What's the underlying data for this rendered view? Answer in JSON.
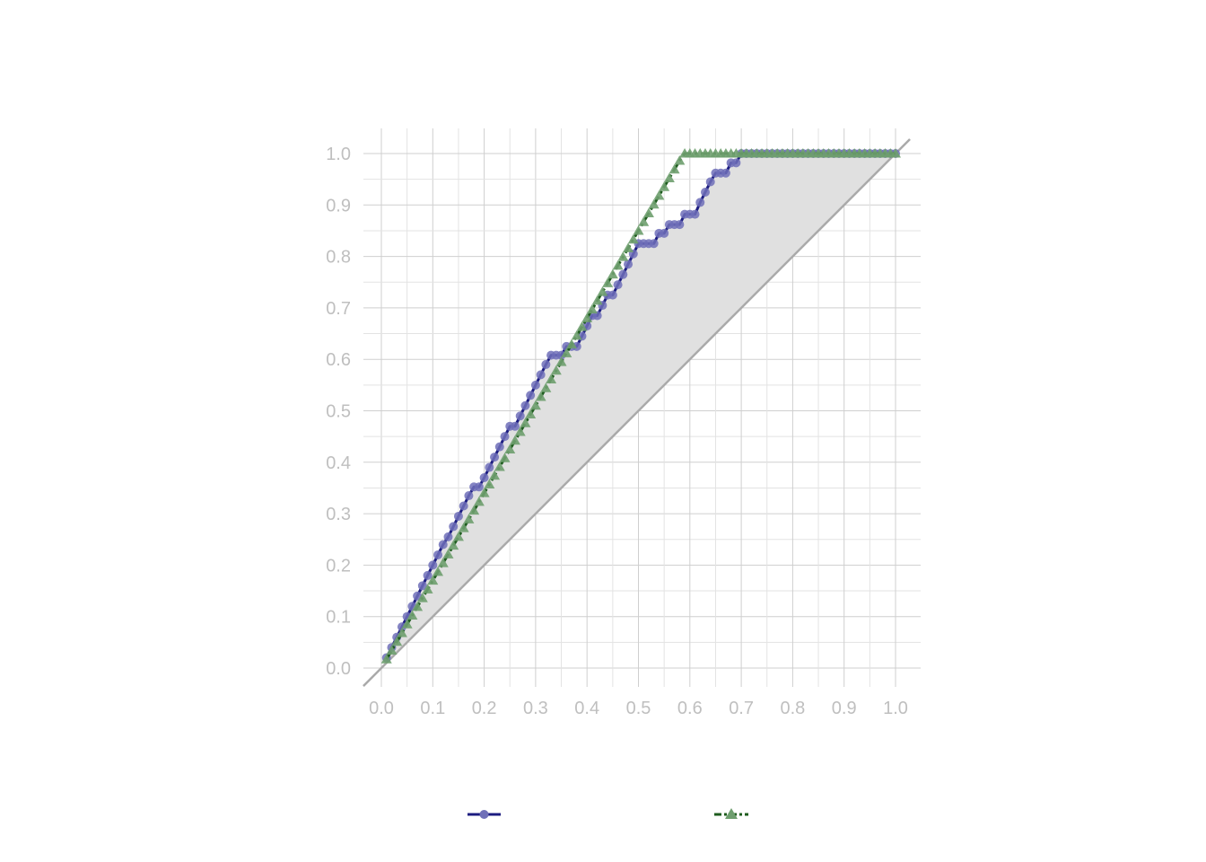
{
  "chart_data": {
    "type": "line",
    "title": "",
    "xlabel": "",
    "ylabel": "",
    "xlim": [
      0.0,
      1.0
    ],
    "ylim": [
      0.0,
      1.0
    ],
    "x_ticks": [
      "0.0",
      "0.1",
      "0.2",
      "0.3",
      "0.4",
      "0.5",
      "0.6",
      "0.7",
      "0.8",
      "0.9",
      "1.0"
    ],
    "y_ticks": [
      "0.0",
      "0.1",
      "0.2",
      "0.3",
      "0.4",
      "0.5",
      "0.6",
      "0.7",
      "0.8",
      "0.9",
      "1.0"
    ],
    "grid": true,
    "legend_position": "bottom",
    "reference_line": {
      "from": [
        0.0,
        0.0
      ],
      "to": [
        1.0,
        1.0
      ],
      "color": "#aaaaaa"
    },
    "shaded_area": {
      "between": [
        "Series A",
        "reference_line"
      ],
      "color": "#e0e0e0"
    },
    "series": [
      {
        "marker": "circle",
        "line_style": "solid",
        "color": "#1c1c80",
        "marker_color": "#6f6fb8",
        "x": [
          0.01,
          0.02,
          0.03,
          0.04,
          0.05,
          0.06,
          0.07,
          0.08,
          0.09,
          0.1,
          0.11,
          0.12,
          0.13,
          0.14,
          0.15,
          0.16,
          0.17,
          0.18,
          0.19,
          0.2,
          0.21,
          0.22,
          0.23,
          0.24,
          0.25,
          0.26,
          0.27,
          0.28,
          0.29,
          0.3,
          0.31,
          0.32,
          0.33,
          0.34,
          0.35,
          0.36,
          0.37,
          0.38,
          0.39,
          0.4,
          0.41,
          0.42,
          0.43,
          0.44,
          0.45,
          0.46,
          0.47,
          0.48,
          0.49,
          0.5,
          0.51,
          0.52,
          0.53,
          0.54,
          0.55,
          0.56,
          0.57,
          0.58,
          0.59,
          0.6,
          0.61,
          0.62,
          0.63,
          0.64,
          0.65,
          0.66,
          0.67,
          0.68,
          0.69,
          0.7,
          0.71,
          0.72,
          0.73,
          0.74,
          0.75,
          0.76,
          0.77,
          0.78,
          0.79,
          0.8,
          0.81,
          0.82,
          0.83,
          0.84,
          0.85,
          0.86,
          0.87,
          0.88,
          0.89,
          0.9,
          0.91,
          0.92,
          0.93,
          0.94,
          0.95,
          0.96,
          0.97,
          0.98,
          0.99,
          1.0
        ],
        "y": [
          0.02,
          0.04,
          0.06,
          0.08,
          0.1,
          0.12,
          0.14,
          0.16,
          0.18,
          0.2,
          0.22,
          0.24,
          0.255,
          0.275,
          0.295,
          0.315,
          0.335,
          0.352,
          0.352,
          0.37,
          0.39,
          0.41,
          0.43,
          0.45,
          0.47,
          0.47,
          0.49,
          0.51,
          0.53,
          0.55,
          0.57,
          0.59,
          0.608,
          0.608,
          0.608,
          0.625,
          0.625,
          0.625,
          0.645,
          0.665,
          0.685,
          0.685,
          0.705,
          0.725,
          0.725,
          0.745,
          0.765,
          0.785,
          0.805,
          0.825,
          0.825,
          0.825,
          0.825,
          0.845,
          0.845,
          0.862,
          0.862,
          0.862,
          0.882,
          0.882,
          0.882,
          0.905,
          0.925,
          0.945,
          0.962,
          0.962,
          0.962,
          0.982,
          0.982,
          1.0,
          1.0,
          1.0,
          1.0,
          1.0,
          1.0,
          1.0,
          1.0,
          1.0,
          1.0,
          1.0,
          1.0,
          1.0,
          1.0,
          1.0,
          1.0,
          1.0,
          1.0,
          1.0,
          1.0,
          1.0,
          1.0,
          1.0,
          1.0,
          1.0,
          1.0,
          1.0,
          1.0,
          1.0,
          1.0,
          1.0
        ]
      },
      {
        "marker": "triangle",
        "line_style": "dashed",
        "color": "#1e5c1e",
        "marker_color": "#6e9e6e",
        "x": [
          0.01,
          0.02,
          0.03,
          0.04,
          0.05,
          0.06,
          0.07,
          0.08,
          0.09,
          0.1,
          0.11,
          0.12,
          0.13,
          0.14,
          0.15,
          0.16,
          0.17,
          0.18,
          0.19,
          0.2,
          0.21,
          0.22,
          0.23,
          0.24,
          0.25,
          0.26,
          0.27,
          0.28,
          0.29,
          0.3,
          0.31,
          0.32,
          0.33,
          0.34,
          0.35,
          0.36,
          0.37,
          0.38,
          0.39,
          0.4,
          0.41,
          0.42,
          0.43,
          0.44,
          0.45,
          0.46,
          0.47,
          0.48,
          0.49,
          0.5,
          0.51,
          0.52,
          0.53,
          0.54,
          0.55,
          0.56,
          0.57,
          0.58,
          0.59,
          0.6,
          0.61,
          0.62,
          0.63,
          0.64,
          0.65,
          0.66,
          0.67,
          0.68,
          0.69,
          0.7,
          0.71,
          0.72,
          0.73,
          0.74,
          0.75,
          0.76,
          0.77,
          0.78,
          0.79,
          0.8,
          0.81,
          0.82,
          0.83,
          0.84,
          0.85,
          0.86,
          0.87,
          0.88,
          0.89,
          0.9,
          0.91,
          0.92,
          0.93,
          0.94,
          0.95,
          0.96,
          0.97,
          0.98,
          0.99,
          1.0
        ],
        "y": [
          0.017,
          0.034,
          0.051,
          0.068,
          0.085,
          0.102,
          0.119,
          0.136,
          0.153,
          0.17,
          0.187,
          0.204,
          0.221,
          0.238,
          0.255,
          0.272,
          0.289,
          0.306,
          0.323,
          0.34,
          0.357,
          0.374,
          0.391,
          0.408,
          0.425,
          0.442,
          0.459,
          0.476,
          0.493,
          0.51,
          0.527,
          0.544,
          0.561,
          0.578,
          0.595,
          0.612,
          0.629,
          0.646,
          0.663,
          0.68,
          0.697,
          0.714,
          0.731,
          0.748,
          0.765,
          0.782,
          0.799,
          0.816,
          0.833,
          0.85,
          0.867,
          0.884,
          0.901,
          0.918,
          0.935,
          0.952,
          0.969,
          0.986,
          1.0,
          1.0,
          1.0,
          1.0,
          1.0,
          1.0,
          1.0,
          1.0,
          1.0,
          1.0,
          1.0,
          1.0,
          1.0,
          1.0,
          1.0,
          1.0,
          1.0,
          1.0,
          1.0,
          1.0,
          1.0,
          1.0,
          1.0,
          1.0,
          1.0,
          1.0,
          1.0,
          1.0,
          1.0,
          1.0,
          1.0,
          1.0,
          1.0,
          1.0,
          1.0,
          1.0,
          1.0,
          1.0,
          1.0,
          1.0,
          1.0,
          1.0
        ]
      }
    ]
  }
}
